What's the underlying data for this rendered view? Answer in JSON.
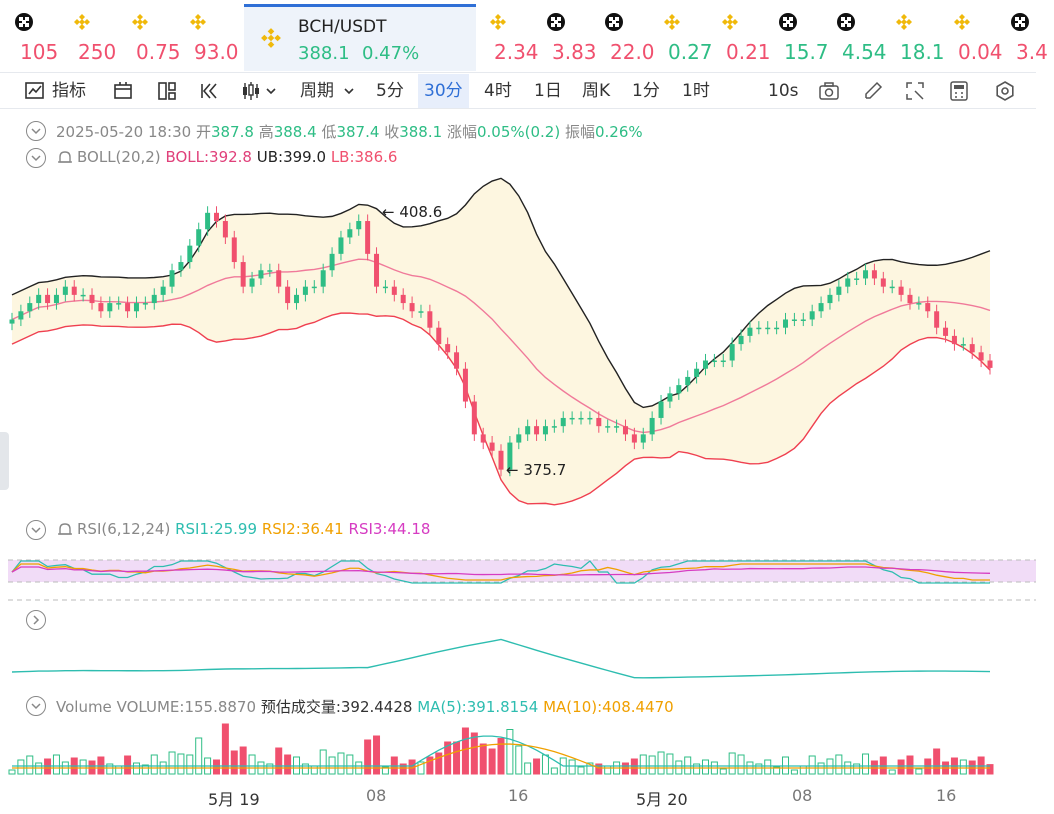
{
  "tickers": [
    {
      "icon": "okx-icon",
      "value": "105",
      "color": "#f0506e"
    },
    {
      "icon": "bnb-icon",
      "value": "250",
      "color": "#f0506e"
    },
    {
      "icon": "bnb-icon",
      "value": "0.75",
      "color": "#f0506e"
    },
    {
      "icon": "bnb-icon",
      "value": "93.0",
      "color": "#f0506e"
    },
    {
      "icon": "bnb-icon",
      "value": "2.34",
      "color": "#f0506e"
    },
    {
      "icon": "okx-icon",
      "value": "3.83",
      "color": "#f0506e"
    },
    {
      "icon": "okx-icon",
      "value": "22.0",
      "color": "#f0506e"
    },
    {
      "icon": "bnb-icon",
      "value": "0.27",
      "color": "#2ebd85"
    },
    {
      "icon": "bnb-icon",
      "value": "0.21",
      "color": "#f0506e"
    },
    {
      "icon": "okx-icon",
      "value": "15.7",
      "color": "#2ebd85"
    },
    {
      "icon": "okx-icon",
      "value": "4.54",
      "color": "#2ebd85"
    },
    {
      "icon": "bnb-icon",
      "value": "18.1",
      "color": "#2ebd85"
    },
    {
      "icon": "bnb-icon",
      "value": "0.04",
      "color": "#f0506e"
    },
    {
      "icon": "okx-icon",
      "value": "3.4",
      "color": "#f0506e"
    }
  ],
  "active": {
    "symbol": "BCH/USDT",
    "price": "388.1",
    "change": "0.47%"
  },
  "toolbar": {
    "indicator": "指标",
    "period": "周期",
    "intervals": [
      "5分",
      "30分",
      "4时",
      "1日",
      "周K",
      "1分",
      "1时"
    ],
    "selected": "30分",
    "refresh": "10s"
  },
  "ohlc": {
    "date": "2025-05-20 18:30",
    "open_label": "开",
    "open": "387.8",
    "high_label": "高",
    "high": "388.4",
    "low_label": "低",
    "low": "387.4",
    "close_label": "收",
    "close": "388.1",
    "chg_label": "涨幅",
    "chg": "0.05%(0.2)",
    "amp_label": "振幅",
    "amp": "0.26%"
  },
  "boll": {
    "name": "BOLL(20,2)",
    "mid": "BOLL:392.8",
    "ub": "UB:399.0",
    "lb": "LB:386.6"
  },
  "rsi": {
    "name": "RSI(6,12,24)",
    "r1": "RSI1:25.99",
    "r2": "RSI2:36.41",
    "r3": "RSI3:44.18"
  },
  "volume": {
    "name": "Volume",
    "vol": "VOLUME:155.8870",
    "est": "预估成交量:392.4428",
    "ma5": "MA(5):391.8154",
    "ma10": "MA(10):408.4470"
  },
  "annotations": {
    "high": "408.6",
    "low": "375.7"
  },
  "xaxis": [
    "5月 19",
    "08",
    "16",
    "5月 20",
    "08",
    "16"
  ],
  "colors": {
    "up": "#2ebd85",
    "down": "#f0506e",
    "accent": "#2f6fd6"
  },
  "chart_data": {
    "type": "candlestick",
    "interval": "30m",
    "closes": [
      394,
      395,
      396,
      397,
      396,
      397,
      398,
      397,
      397,
      396,
      395,
      396,
      396,
      395,
      396,
      396,
      397,
      398,
      400,
      401,
      403,
      405,
      407,
      406,
      404,
      401,
      398,
      399,
      400,
      400,
      398,
      396,
      397,
      398,
      398,
      400,
      402,
      404,
      405,
      406,
      402,
      398,
      398,
      397,
      396,
      395,
      395,
      393,
      391,
      390,
      388,
      384,
      380,
      379,
      378,
      375.7,
      379,
      380,
      381,
      380,
      381,
      381,
      382,
      382,
      382,
      382,
      381,
      381,
      381,
      380,
      379,
      380,
      382,
      384,
      385,
      386,
      387,
      388,
      389,
      389,
      389,
      391,
      392,
      393,
      393,
      393,
      393,
      394,
      394,
      394,
      395,
      396,
      397,
      398,
      399,
      399,
      400,
      399,
      398,
      398,
      397,
      396,
      396,
      395,
      393,
      392,
      391,
      391,
      390,
      389,
      388.1
    ],
    "boll_mid": 392.8,
    "boll_ub": 399.0,
    "boll_lb": 386.6,
    "high": 408.6,
    "low": 375.7
  }
}
